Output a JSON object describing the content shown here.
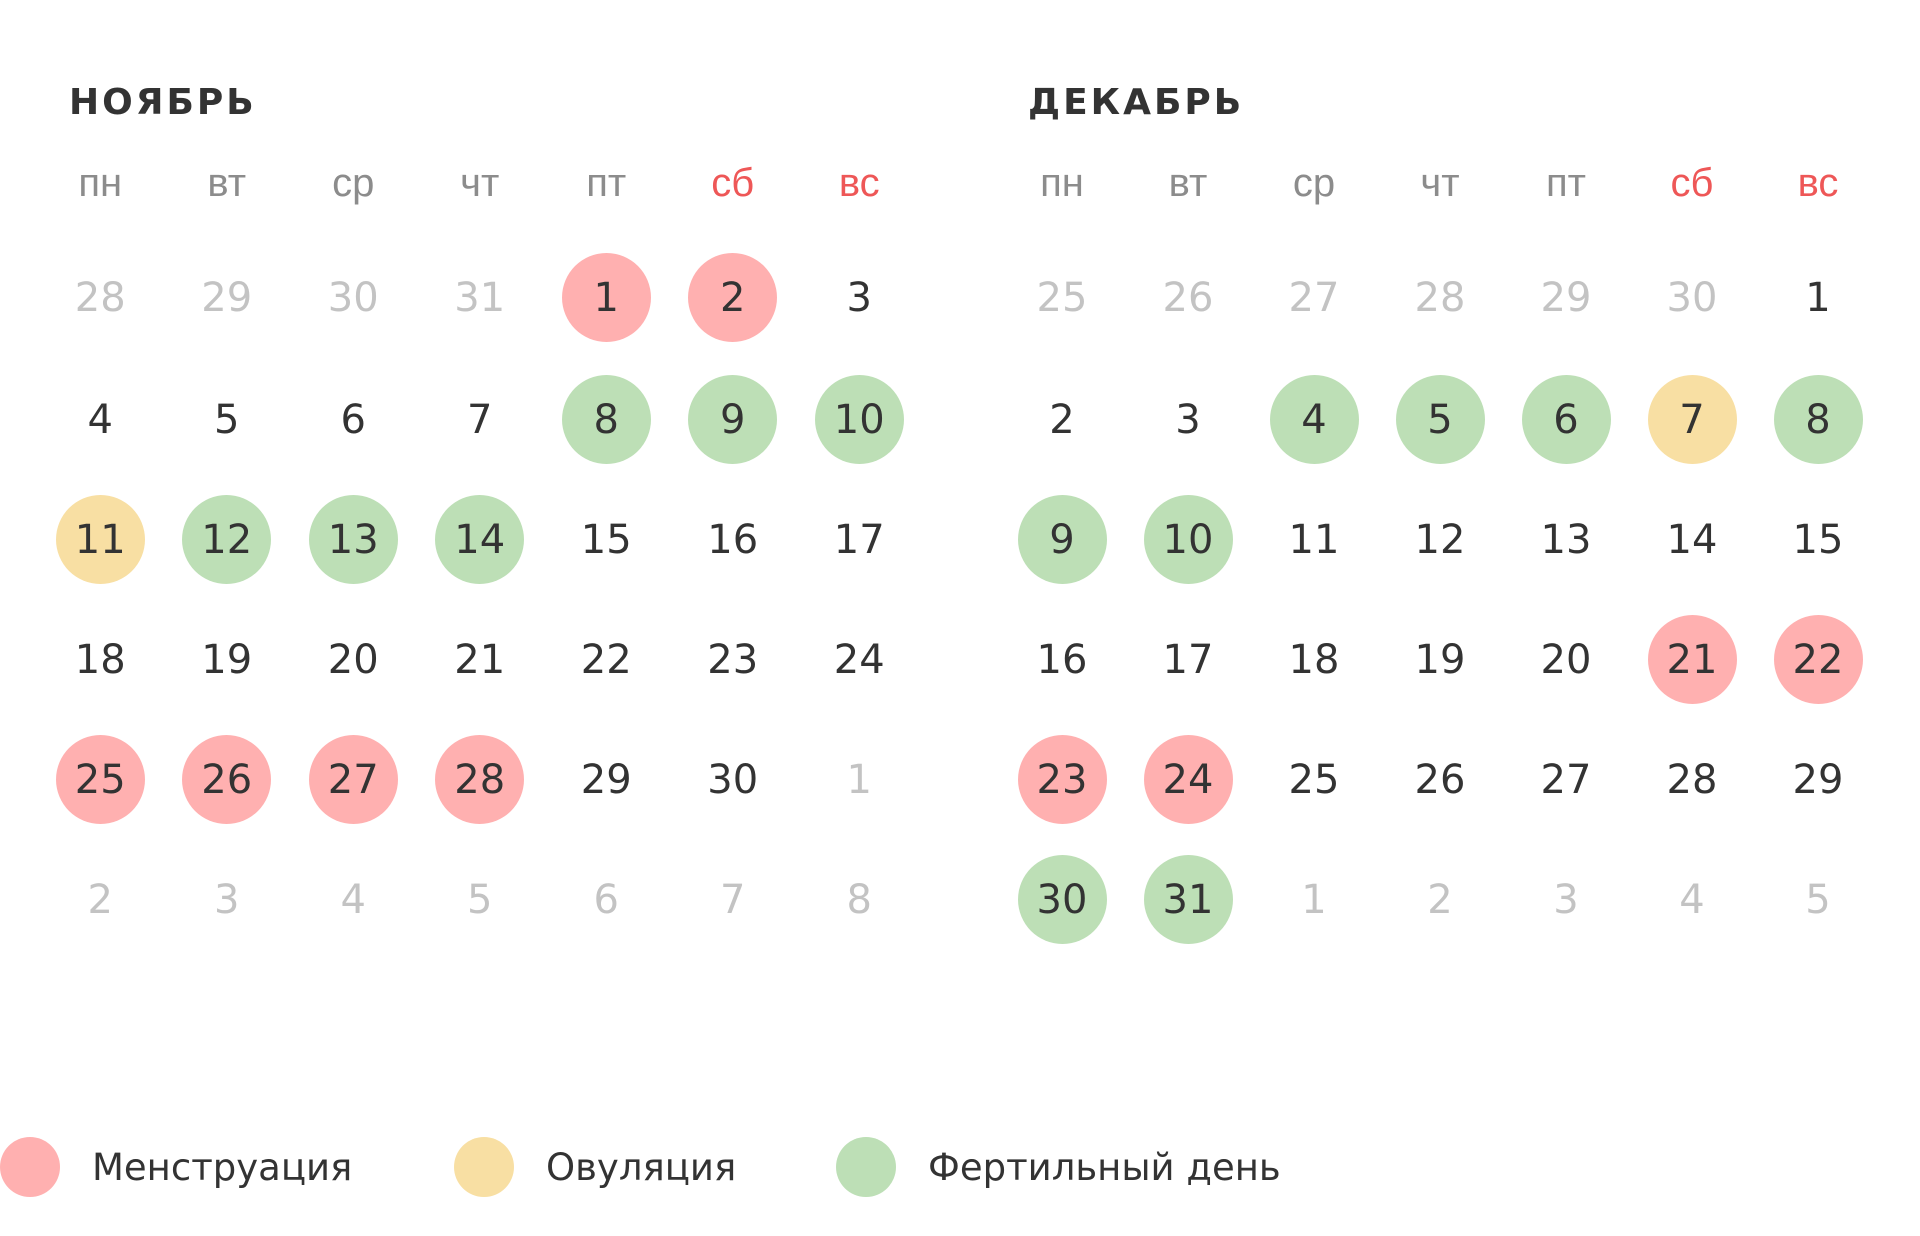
{
  "colors": {
    "menstruation": "#ffb0b0",
    "ovulation": "#f8dfa3",
    "fertile": "#bddfb6",
    "weekend_label": "#ee5757",
    "weekday_label": "#8c8c8c",
    "day_text": "#333333",
    "other_month_text": "#c3c3c3"
  },
  "weekdays": [
    "пн",
    "вт",
    "ср",
    "чт",
    "пт",
    "сб",
    "вс"
  ],
  "weekend_indices": [
    5,
    6
  ],
  "months": [
    {
      "title": "Ноябрь",
      "weeks": [
        [
          {
            "d": "28",
            "t": "other"
          },
          {
            "d": "29",
            "t": "other"
          },
          {
            "d": "30",
            "t": "other"
          },
          {
            "d": "31",
            "t": "other"
          },
          {
            "d": "1",
            "t": "menstruation"
          },
          {
            "d": "2",
            "t": "menstruation"
          },
          {
            "d": "3",
            "t": ""
          }
        ],
        [
          {
            "d": "4",
            "t": ""
          },
          {
            "d": "5",
            "t": ""
          },
          {
            "d": "6",
            "t": ""
          },
          {
            "d": "7",
            "t": ""
          },
          {
            "d": "8",
            "t": "fertile"
          },
          {
            "d": "9",
            "t": "fertile"
          },
          {
            "d": "10",
            "t": "fertile"
          }
        ],
        [
          {
            "d": "11",
            "t": "ovulation"
          },
          {
            "d": "12",
            "t": "fertile"
          },
          {
            "d": "13",
            "t": "fertile"
          },
          {
            "d": "14",
            "t": "fertile"
          },
          {
            "d": "15",
            "t": ""
          },
          {
            "d": "16",
            "t": ""
          },
          {
            "d": "17",
            "t": ""
          }
        ],
        [
          {
            "d": "18",
            "t": ""
          },
          {
            "d": "19",
            "t": ""
          },
          {
            "d": "20",
            "t": ""
          },
          {
            "d": "21",
            "t": ""
          },
          {
            "d": "22",
            "t": ""
          },
          {
            "d": "23",
            "t": ""
          },
          {
            "d": "24",
            "t": ""
          }
        ],
        [
          {
            "d": "25",
            "t": "menstruation"
          },
          {
            "d": "26",
            "t": "menstruation"
          },
          {
            "d": "27",
            "t": "menstruation"
          },
          {
            "d": "28",
            "t": "menstruation"
          },
          {
            "d": "29",
            "t": ""
          },
          {
            "d": "30",
            "t": ""
          },
          {
            "d": "1",
            "t": "other"
          }
        ],
        [
          {
            "d": "2",
            "t": "other"
          },
          {
            "d": "3",
            "t": "other"
          },
          {
            "d": "4",
            "t": "other"
          },
          {
            "d": "5",
            "t": "other"
          },
          {
            "d": "6",
            "t": "other"
          },
          {
            "d": "7",
            "t": "other"
          },
          {
            "d": "8",
            "t": "other"
          }
        ]
      ]
    },
    {
      "title": "Декабрь",
      "weeks": [
        [
          {
            "d": "25",
            "t": "other"
          },
          {
            "d": "26",
            "t": "other"
          },
          {
            "d": "27",
            "t": "other"
          },
          {
            "d": "28",
            "t": "other"
          },
          {
            "d": "29",
            "t": "other"
          },
          {
            "d": "30",
            "t": "other"
          },
          {
            "d": "1",
            "t": ""
          }
        ],
        [
          {
            "d": "2",
            "t": ""
          },
          {
            "d": "3",
            "t": ""
          },
          {
            "d": "4",
            "t": "fertile"
          },
          {
            "d": "5",
            "t": "fertile"
          },
          {
            "d": "6",
            "t": "fertile"
          },
          {
            "d": "7",
            "t": "ovulation"
          },
          {
            "d": "8",
            "t": "fertile"
          }
        ],
        [
          {
            "d": "9",
            "t": "fertile"
          },
          {
            "d": "10",
            "t": "fertile"
          },
          {
            "d": "11",
            "t": ""
          },
          {
            "d": "12",
            "t": ""
          },
          {
            "d": "13",
            "t": ""
          },
          {
            "d": "14",
            "t": ""
          },
          {
            "d": "15",
            "t": ""
          }
        ],
        [
          {
            "d": "16",
            "t": ""
          },
          {
            "d": "17",
            "t": ""
          },
          {
            "d": "18",
            "t": ""
          },
          {
            "d": "19",
            "t": ""
          },
          {
            "d": "20",
            "t": ""
          },
          {
            "d": "21",
            "t": "menstruation"
          },
          {
            "d": "22",
            "t": "menstruation"
          }
        ],
        [
          {
            "d": "23",
            "t": "menstruation"
          },
          {
            "d": "24",
            "t": "menstruation"
          },
          {
            "d": "25",
            "t": ""
          },
          {
            "d": "26",
            "t": ""
          },
          {
            "d": "27",
            "t": ""
          },
          {
            "d": "28",
            "t": ""
          },
          {
            "d": "29",
            "t": ""
          }
        ],
        [
          {
            "d": "30",
            "t": "fertile"
          },
          {
            "d": "31",
            "t": "fertile"
          },
          {
            "d": "1",
            "t": "other"
          },
          {
            "d": "2",
            "t": "other"
          },
          {
            "d": "3",
            "t": "other"
          },
          {
            "d": "4",
            "t": "other"
          },
          {
            "d": "5",
            "t": "other"
          }
        ]
      ]
    }
  ],
  "legend": [
    {
      "key": "menstruation",
      "label": "Менструация"
    },
    {
      "key": "ovulation",
      "label": "Овуляция"
    },
    {
      "key": "fertile",
      "label": "Фертильный день"
    }
  ]
}
